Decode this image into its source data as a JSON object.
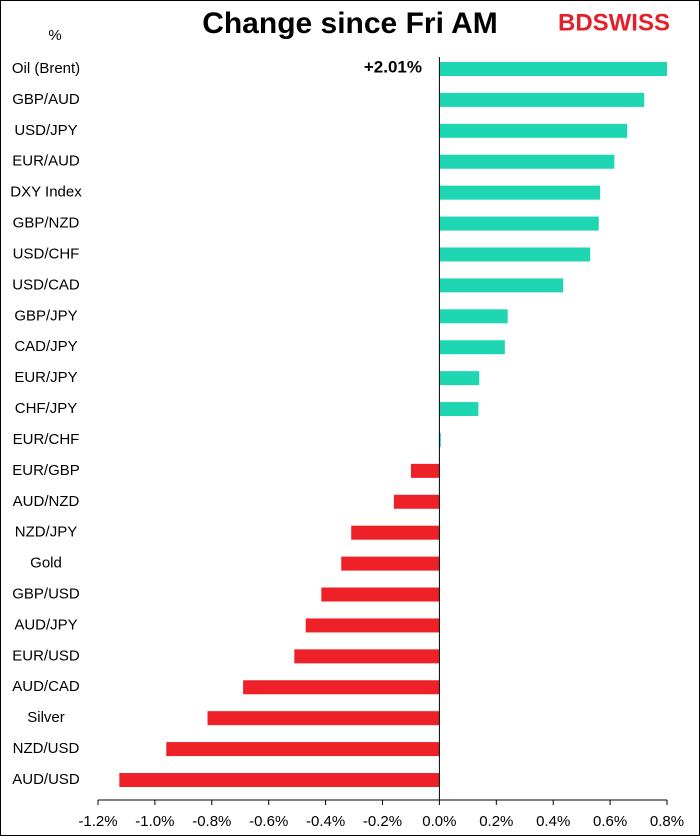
{
  "chart_data": {
    "type": "barh",
    "title": "Change since Fri AM",
    "unit": "%",
    "logo": "BDSWISS",
    "categories": [
      "Oil (Brent)",
      "GBP/AUD",
      "USD/JPY",
      "EUR/AUD",
      "DXY Index",
      "GBP/NZD",
      "USD/CHF",
      "USD/CAD",
      "GBP/JPY",
      "CAD/JPY",
      "EUR/JPY",
      "CHF/JPY",
      "EUR/CHF",
      "EUR/GBP",
      "AUD/NZD",
      "NZD/JPY",
      "Gold",
      "GBP/USD",
      "AUD/JPY",
      "EUR/USD",
      "AUD/CAD",
      "Silver",
      "NZD/USD",
      "AUD/USD"
    ],
    "values": [
      2.01,
      0.72,
      0.66,
      0.615,
      0.565,
      0.56,
      0.53,
      0.435,
      0.24,
      0.23,
      0.14,
      0.137,
      0.005,
      -0.1,
      -0.16,
      -0.31,
      -0.345,
      -0.415,
      -0.47,
      -0.51,
      -0.69,
      -0.815,
      -0.96,
      -1.125
    ],
    "value_labels": [
      "+2.01%",
      null,
      null,
      null,
      null,
      null,
      null,
      null,
      null,
      null,
      null,
      null,
      null,
      null,
      null,
      null,
      null,
      null,
      null,
      null,
      null,
      null,
      null,
      null
    ],
    "positive_color": "#1fd6b2",
    "negative_color": "#ee2128",
    "xlim": [
      -1.2,
      0.8
    ],
    "xticks": [
      {
        "value": -1.2,
        "label": "-1.2%"
      },
      {
        "value": -1.0,
        "label": "-1.0%"
      },
      {
        "value": -0.8,
        "label": "-0.8%"
      },
      {
        "value": -0.6,
        "label": "-0.6%"
      },
      {
        "value": -0.4,
        "label": "-0.4%"
      },
      {
        "value": -0.2,
        "label": "-0.2%"
      },
      {
        "value": 0.0,
        "label": "0.0%"
      },
      {
        "value": 0.2,
        "label": "0.2%"
      },
      {
        "value": 0.4,
        "label": "0.4%"
      },
      {
        "value": 0.6,
        "label": "0.6%"
      },
      {
        "value": 0.8,
        "label": "0.8%"
      }
    ]
  }
}
